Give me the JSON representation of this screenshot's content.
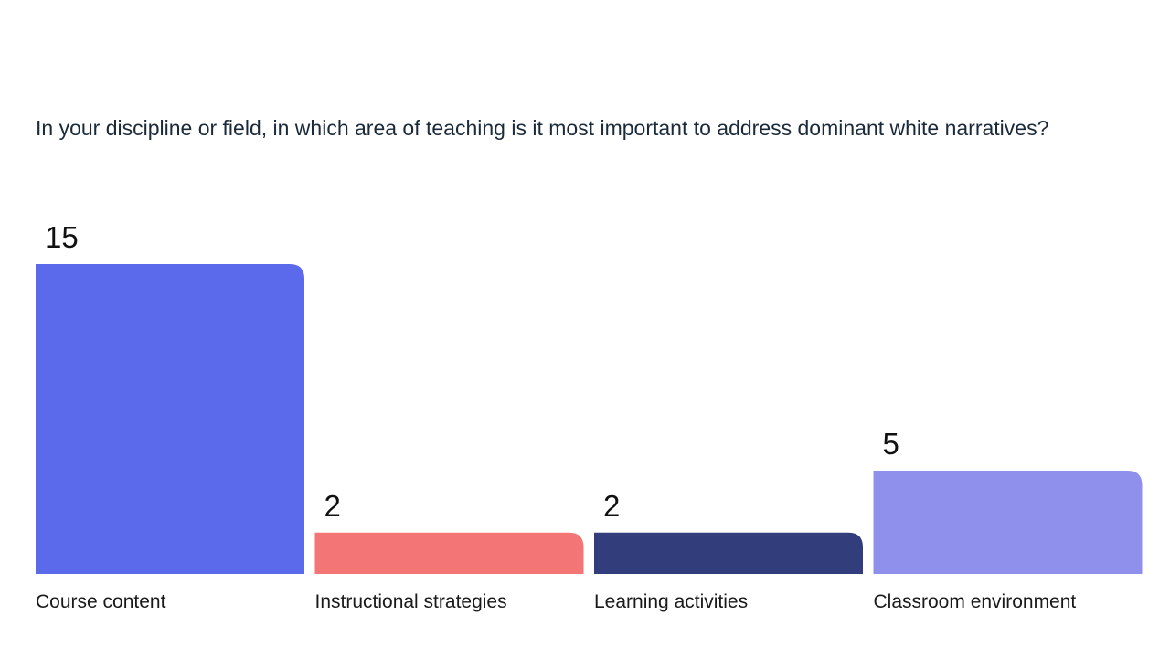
{
  "question": {
    "text": "In your discipline or field, in which area of teaching is it most important to address dominant white narratives?"
  },
  "chart_data": {
    "type": "bar",
    "title": "In your discipline or field, in which area of teaching is it most important to address dominant white narratives?",
    "categories": [
      "Course content",
      "Instructional strategies",
      "Learning activities",
      "Classroom environment"
    ],
    "values": [
      15,
      2,
      2,
      5
    ],
    "colors": [
      "#5a6aea",
      "#f47575",
      "#323d7c",
      "#8f90ec"
    ],
    "ylim": [
      0,
      15
    ],
    "grid": false,
    "legend": "none",
    "data_labels": true
  }
}
